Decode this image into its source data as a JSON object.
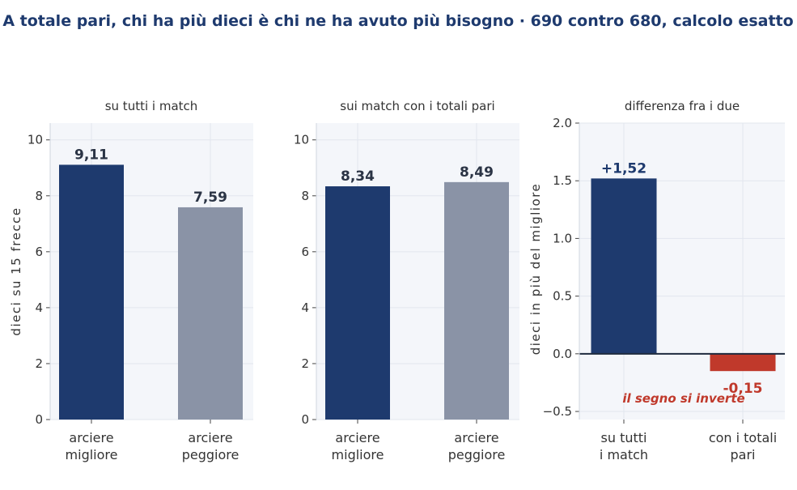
{
  "title": "A totale pari, chi ha più dieci è chi ne ha avuto più bisogno  ·  690 contro 680, calcolo esatto",
  "colors": {
    "best": "#1e3a6e",
    "worst": "#8a93a6",
    "negative": "#c0392b",
    "panel_bg": "#f4f6fa",
    "grid": "#e2e6ee"
  },
  "chart_data": [
    {
      "type": "bar",
      "title": "su tutti i match",
      "ylabel": "dieci su 15 frecce",
      "categories": [
        "arciere\nmigliore",
        "arciere\npeggiore"
      ],
      "values": [
        9.11,
        7.59
      ],
      "value_labels": [
        "9,11",
        "7,59"
      ],
      "ylim": [
        0,
        10.6
      ],
      "yticks": [
        0,
        2,
        4,
        6,
        8,
        10
      ],
      "ytick_labels": [
        "0",
        "2",
        "4",
        "6",
        "8",
        "10"
      ],
      "grid": true
    },
    {
      "type": "bar",
      "title": "sui match con i totali pari",
      "ylabel": "",
      "categories": [
        "arciere\nmigliore",
        "arciere\npeggiore"
      ],
      "values": [
        8.34,
        8.49
      ],
      "value_labels": [
        "8,34",
        "8,49"
      ],
      "ylim": [
        0,
        10.6
      ],
      "yticks": [
        0,
        2,
        4,
        6,
        8,
        10
      ],
      "ytick_labels": [
        "0",
        "2",
        "4",
        "6",
        "8",
        "10"
      ],
      "grid": true
    },
    {
      "type": "bar",
      "title": "differenza fra i due",
      "ylabel": "dieci in più del migliore",
      "categories": [
        "su tutti\ni match",
        "con i totali\npari"
      ],
      "values": [
        1.52,
        -0.15
      ],
      "value_labels": [
        "+1,52",
        "-0,15"
      ],
      "ylim": [
        -0.57,
        2.0
      ],
      "yticks": [
        -0.5,
        0.0,
        0.5,
        1.0,
        1.5,
        2.0
      ],
      "ytick_labels": [
        "−0.5",
        "0.0",
        "0.5",
        "1.0",
        "1.5",
        "2.0"
      ],
      "grid": true,
      "annotation": "il segno si inverte"
    }
  ]
}
